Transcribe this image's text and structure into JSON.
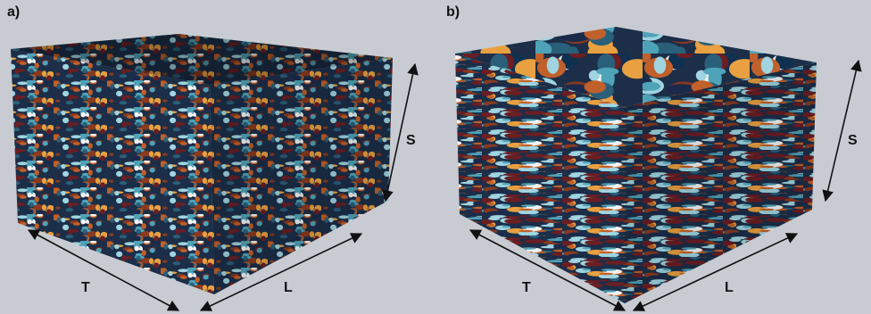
{
  "panels": [
    {
      "label": "a)",
      "axes": {
        "t": "T",
        "l": "L",
        "s": "S"
      }
    },
    {
      "label": "b)",
      "axes": {
        "t": "T",
        "l": "L",
        "s": "S"
      }
    }
  ]
}
